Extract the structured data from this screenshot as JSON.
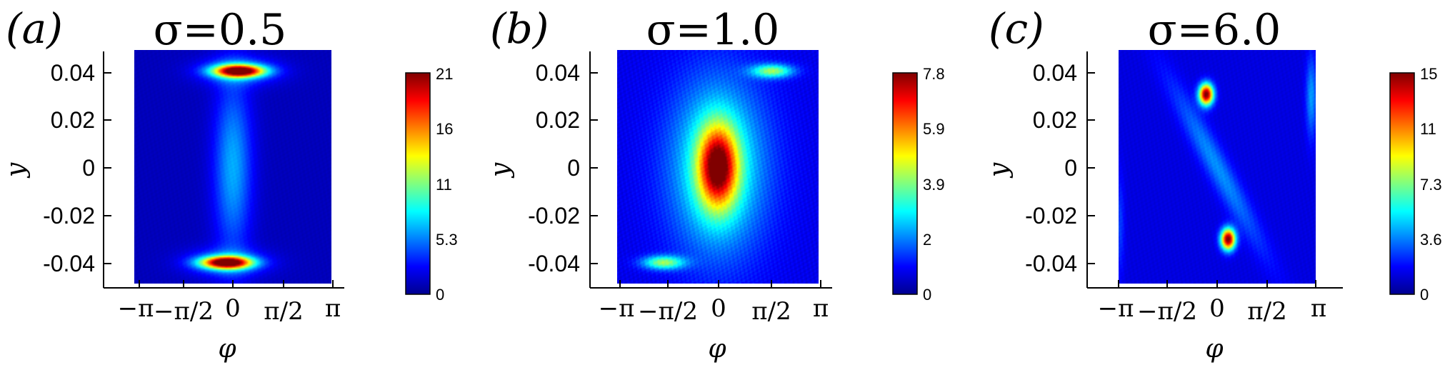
{
  "chart_data": [
    {
      "type": "heatmap",
      "panel_label": "(a)",
      "title": "σ=0.5",
      "xlabel": "φ",
      "ylabel": "y",
      "x_ticks": [
        "−π",
        "−π/2",
        "0",
        "π/2",
        "π"
      ],
      "xlim": [
        -3.1416,
        3.1416
      ],
      "y_ticks": [
        "0.04",
        "0.02",
        "0",
        "-0.02",
        "-0.04"
      ],
      "ylim": [
        -0.05,
        0.05
      ],
      "colorbar": {
        "ticks": [
          "21",
          "16",
          "11",
          "5.3",
          "0"
        ],
        "range": [
          0,
          21
        ]
      },
      "background": 1.2,
      "blobs": [
        {
          "x": 0,
          "y": 0,
          "sx": 0.42,
          "sy": 0.026,
          "amp": 5.0
        },
        {
          "x": 0.2,
          "y": 0.041,
          "sx": 0.55,
          "sy": 0.0018,
          "amp": 19.5,
          "angle": -0.004
        },
        {
          "x": -0.2,
          "y": -0.041,
          "sx": 0.55,
          "sy": 0.0018,
          "amp": 19.5,
          "angle": -0.004
        },
        {
          "x": 0.2,
          "y": 0.041,
          "sx": 0.85,
          "sy": 0.004,
          "amp": 4.5,
          "angle": -0.004
        },
        {
          "x": -0.2,
          "y": -0.041,
          "sx": 0.85,
          "sy": 0.004,
          "amp": 4.5,
          "angle": -0.004
        }
      ]
    },
    {
      "type": "heatmap",
      "panel_label": "(b)",
      "title": "σ=1.0",
      "xlabel": "φ",
      "ylabel": "y",
      "x_ticks": [
        "−π",
        "−π/2",
        "0",
        "π/2",
        "π"
      ],
      "xlim": [
        -3.1416,
        3.1416
      ],
      "y_ticks": [
        "0.04",
        "0.02",
        "0",
        "-0.02",
        "-0.04"
      ],
      "ylim": [
        -0.05,
        0.05
      ],
      "colorbar": {
        "ticks": [
          "7.8",
          "5.9",
          "3.9",
          "2",
          "0"
        ],
        "range": [
          0,
          7.8
        ]
      },
      "background": 0.8,
      "blobs": [
        {
          "x": 0,
          "y": 0,
          "sx": 0.42,
          "sy": 0.012,
          "amp": 5.5
        },
        {
          "x": 0,
          "y": 0,
          "sx": 1.05,
          "sy": 0.026,
          "amp": 2.6
        },
        {
          "x": 1.7,
          "y": 0.041,
          "sx": 0.45,
          "sy": 0.002,
          "amp": 3.2
        },
        {
          "x": -1.7,
          "y": -0.041,
          "sx": 0.45,
          "sy": 0.002,
          "amp": 3.2
        }
      ]
    },
    {
      "type": "heatmap",
      "panel_label": "(c)",
      "title": "σ=6.0",
      "xlabel": "φ",
      "ylabel": "y",
      "x_ticks": [
        "−π",
        "−π/2",
        "0",
        "π/2",
        "π"
      ],
      "xlim": [
        -3.1416,
        3.1416
      ],
      "y_ticks": [
        "0.04",
        "0.02",
        "0",
        "-0.02",
        "-0.04"
      ],
      "ylim": [
        -0.05,
        0.05
      ],
      "colorbar": {
        "ticks": [
          "15",
          "11",
          "7.3",
          "3.6",
          "0"
        ],
        "range": [
          0,
          15
        ]
      },
      "background": 1.4,
      "blobs": [
        {
          "x": -0.35,
          "y": 0.031,
          "sx": 0.16,
          "sy": 0.0032,
          "amp": 14.0
        },
        {
          "x": 0.35,
          "y": -0.031,
          "sx": 0.16,
          "sy": 0.0032,
          "amp": 14.0
        },
        {
          "x": 0,
          "y": 0,
          "sx": 0.3,
          "sy": 0.025,
          "amp": 2.6,
          "angle": -0.4
        },
        {
          "x": 3.0,
          "y": 0.03,
          "sx": 0.12,
          "sy": 0.012,
          "amp": 2.8
        },
        {
          "x": -3.1,
          "y": -0.025,
          "sx": 0.1,
          "sy": 0.015,
          "amp": 1.4
        }
      ]
    }
  ]
}
